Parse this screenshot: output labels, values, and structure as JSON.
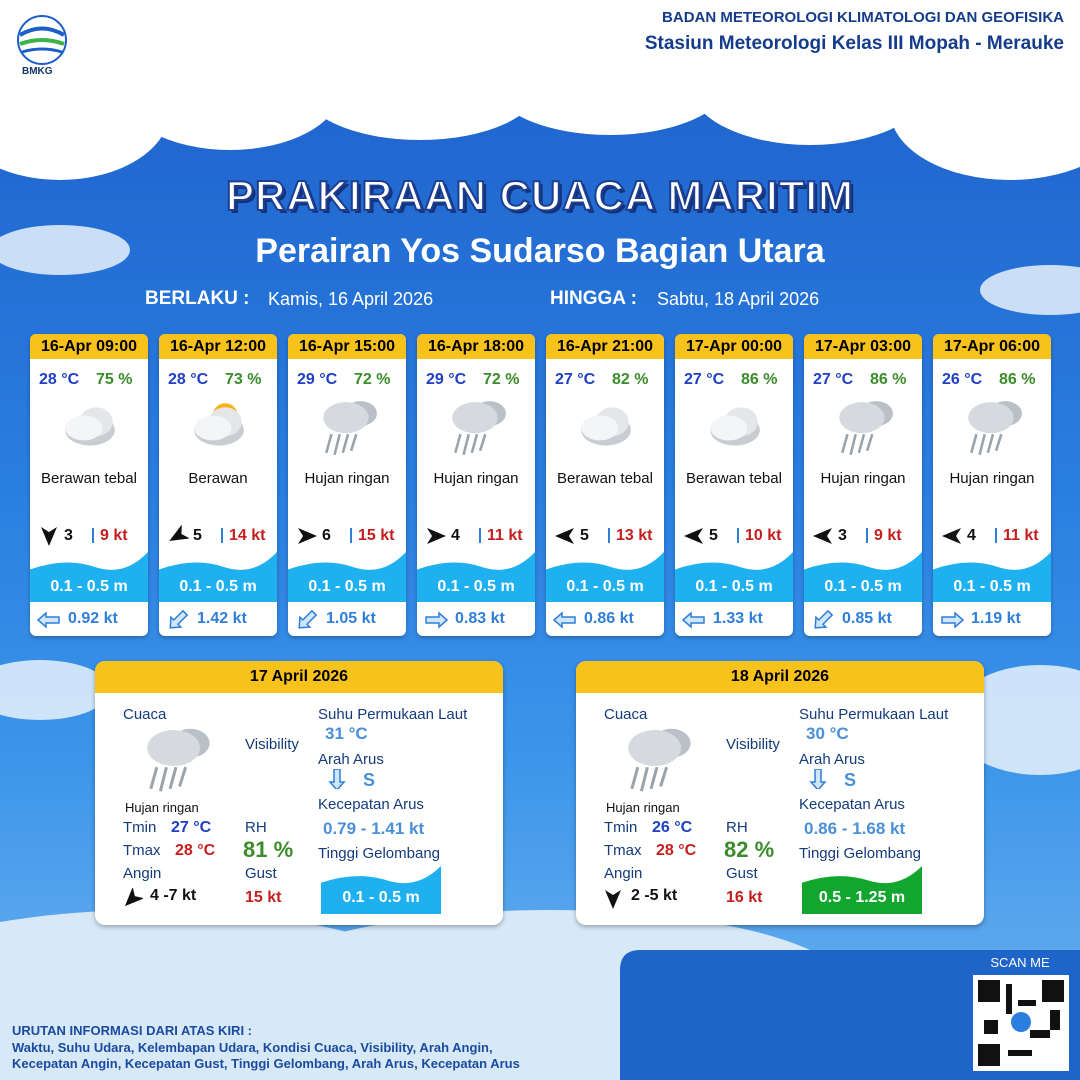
{
  "header": {
    "logo": "BMKG",
    "agency": "BADAN METEOROLOGI KLIMATOLOGI DAN GEOFISIKA",
    "station": "Stasiun Meteorologi Kelas III Mopah - Merauke"
  },
  "title": "PRAKIRAAN CUACA MARITIM",
  "subtitle": "Perairan Yos Sudarso Bagian Utara",
  "validity": {
    "from_label": "BERLAKU :",
    "from": "Kamis, 16 April 2026",
    "to_label": "HINGGA :",
    "to": "Sabtu, 18 April 2026"
  },
  "forecasts": [
    {
      "time": "16-Apr 09:00",
      "temperature": "28 °C",
      "humidity": "75 %",
      "weather": "Berawan tebal",
      "wind": "3",
      "gust": "9 kt",
      "wave": "0.1 - 0.5 m",
      "current": "0.92 kt"
    },
    {
      "time": "16-Apr 12:00",
      "temperature": "28 °C",
      "humidity": "73 %",
      "weather": "Berawan",
      "wind": "5",
      "gust": "14 kt",
      "wave": "0.1 - 0.5 m",
      "current": "1.42 kt"
    },
    {
      "time": "16-Apr 15:00",
      "temperature": "29 °C",
      "humidity": "72 %",
      "weather": "Hujan ringan",
      "wind": "6",
      "gust": "15 kt",
      "wave": "0.1 - 0.5 m",
      "current": "1.05 kt"
    },
    {
      "time": "16-Apr 18:00",
      "temperature": "29 °C",
      "humidity": "72 %",
      "weather": "Hujan ringan",
      "wind": "4",
      "gust": "11 kt",
      "wave": "0.1 - 0.5 m",
      "current": "0.83 kt"
    },
    {
      "time": "16-Apr 21:00",
      "temperature": "27 °C",
      "humidity": "82 %",
      "weather": "Berawan tebal",
      "wind": "5",
      "gust": "13 kt",
      "wave": "0.1 - 0.5 m",
      "current": "0.86 kt"
    },
    {
      "time": "17-Apr 00:00",
      "temperature": "27 °C",
      "humidity": "86 %",
      "weather": "Berawan tebal",
      "wind": "5",
      "gust": "10 kt",
      "wave": "0.1 - 0.5 m",
      "current": "1.33 kt"
    },
    {
      "time": "17-Apr 03:00",
      "temperature": "27 °C",
      "humidity": "86 %",
      "weather": "Hujan ringan",
      "wind": "3",
      "gust": "9 kt",
      "wave": "0.1 - 0.5 m",
      "current": "0.85 kt"
    },
    {
      "time": "17-Apr 06:00",
      "temperature": "26 °C",
      "humidity": "86 %",
      "weather": "Hujan ringan",
      "wind": "4",
      "gust": "11 kt",
      "wave": "0.1 - 0.5 m",
      "current": "1.19 kt"
    }
  ],
  "daily": [
    {
      "date": "17 April 2026",
      "weather_label": "Cuaca",
      "weather": "Hujan ringan",
      "visibility_label": "Visibility",
      "sst_label": "Suhu Permukaan Laut",
      "sst": "31 °C",
      "current_dir_label": "Arah Arus",
      "current_dir": "S",
      "current_speed_label": "Kecepatan Arus",
      "current_speed": "0.79 - 1.41 kt",
      "wave_label": "Tinggi Gelombang",
      "wave": "0.1 - 0.5 m",
      "tmin_label": "Tmin",
      "tmin": "27 °C",
      "tmax_label": "Tmax",
      "tmax": "28 °C",
      "wind_label": "Angin",
      "wind": "4 -7 kt",
      "rh_label": "RH",
      "rh": "81 %",
      "gust_label": "Gust",
      "gust": "15 kt"
    },
    {
      "date": "18 April 2026",
      "weather_label": "Cuaca",
      "weather": "Hujan ringan",
      "visibility_label": "Visibility",
      "sst_label": "Suhu Permukaan Laut",
      "sst": "30 °C",
      "current_dir_label": "Arah Arus",
      "current_dir": "S",
      "current_speed_label": "Kecepatan Arus",
      "current_speed": "0.86 - 1.68 kt",
      "wave_label": "Tinggi Gelombang",
      "wave": "0.5 - 1.25 m",
      "tmin_label": "Tmin",
      "tmin": "26 °C",
      "tmax_label": "Tmax",
      "tmax": "28 °C",
      "wind_label": "Angin",
      "wind": "2 -5 kt",
      "rh_label": "RH",
      "rh": "82 %",
      "gust_label": "Gust",
      "gust": "16 kt"
    }
  ],
  "footer": {
    "scan": "SCAN ME",
    "legend_title": "URUTAN INFORMASI DARI ATAS KIRI :",
    "legend_lines": [
      "Waktu, Suhu Udara, Kelembapan Udara, Kondisi Cuaca, Visibility, Arah Angin,",
      "Kecepatan Angin, Kecepatan Gust, Tinggi Gelombang, Arah Arus, Kecepatan Arus"
    ]
  }
}
